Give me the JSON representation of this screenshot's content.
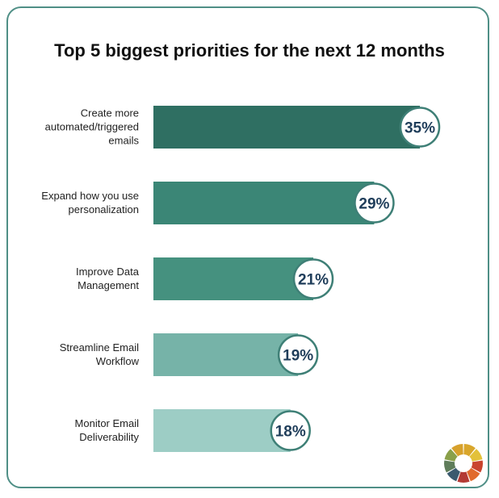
{
  "chart_data": {
    "type": "bar",
    "orientation": "horizontal",
    "title": "Top 5 biggest priorities for the next 12 months",
    "categories": [
      "Create more automated/triggered emails",
      "Expand how you use personalization",
      "Improve Data Management",
      "Streamline Email Workflow",
      "Monitor Email Deliverability"
    ],
    "category_lines": [
      [
        "Create more",
        "automated/triggered",
        "emails"
      ],
      [
        "Expand how you use",
        "personalization"
      ],
      [
        "Improve Data",
        "Management"
      ],
      [
        "Streamline Email",
        "Workflow"
      ],
      [
        "Monitor Email",
        "Deliverability"
      ]
    ],
    "values": [
      35,
      29,
      21,
      19,
      18
    ],
    "value_labels": [
      "35%",
      "29%",
      "21%",
      "19%",
      "18%"
    ],
    "colors": [
      "#2f6f62",
      "#3b8676",
      "#45917f",
      "#76b3a8",
      "#9dcdc5"
    ],
    "badge_border_color": "#3e7f76",
    "value_text_color": "#1f3d5a",
    "xlim": [
      0,
      35
    ],
    "grid": false,
    "legend": "none"
  },
  "logo_colors": [
    "#d9a62b",
    "#e3c13a",
    "#c9442f",
    "#e16a2d",
    "#b33a35",
    "#3b5a6e",
    "#5f7d5a",
    "#8aa04a",
    "#d7a12c"
  ]
}
